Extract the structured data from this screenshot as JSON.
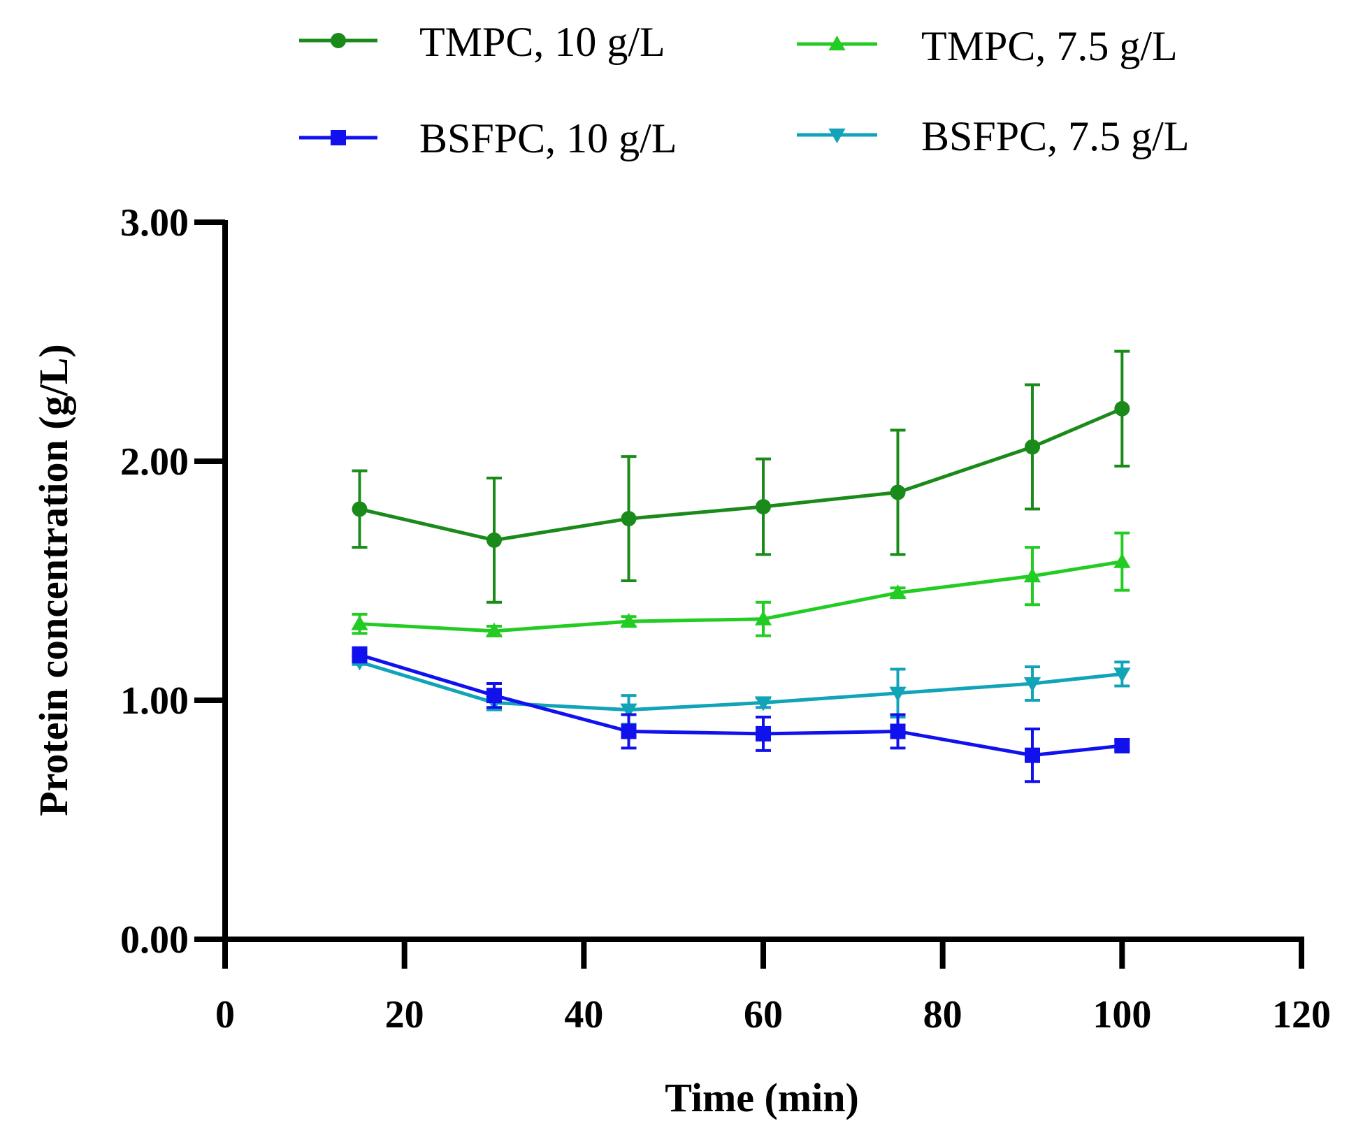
{
  "chart_data": {
    "type": "line",
    "title": "",
    "xlabel": "Time (min)",
    "ylabel": "Protein concentration (g/L)",
    "xlim": [
      0,
      120
    ],
    "ylim": [
      0,
      3
    ],
    "xticks": [
      0,
      20,
      40,
      60,
      80,
      100,
      120
    ],
    "xtick_labels": [
      "0",
      "20",
      "40",
      "60",
      "80",
      "100",
      "120"
    ],
    "yticks": [
      0,
      1,
      2,
      3
    ],
    "ytick_labels": [
      "0.00",
      "1.00",
      "2.00",
      "3.00"
    ],
    "grid": false,
    "legend_position": "top",
    "x": [
      15,
      30,
      45,
      60,
      75,
      90,
      100
    ],
    "series": [
      {
        "name": "TMPC, 10 g/L",
        "color": "#1a8a1a",
        "marker": "circle",
        "values": [
          1.8,
          1.67,
          1.76,
          1.81,
          1.87,
          2.06,
          2.22
        ],
        "errors": [
          0.16,
          0.26,
          0.26,
          0.2,
          0.26,
          0.26,
          0.24
        ]
      },
      {
        "name": "TMPC, 7.5 g/L",
        "color": "#22cc22",
        "marker": "triangle-up",
        "values": [
          1.32,
          1.29,
          1.33,
          1.34,
          1.45,
          1.52,
          1.58
        ],
        "errors": [
          0.04,
          0.02,
          0.02,
          0.07,
          0.02,
          0.12,
          0.12
        ]
      },
      {
        "name": "BSFPC, 10 g/L",
        "color": "#1111ee",
        "marker": "square",
        "values": [
          1.19,
          1.02,
          0.87,
          0.86,
          0.87,
          0.77,
          0.81
        ],
        "errors": [
          0.03,
          0.05,
          0.07,
          0.07,
          0.07,
          0.11,
          0.02
        ]
      },
      {
        "name": "BSFPC, 7.5 g/L",
        "color": "#11a3b8",
        "marker": "triangle-down",
        "values": [
          1.16,
          0.99,
          0.96,
          0.99,
          1.03,
          1.07,
          1.11
        ],
        "errors": [
          0.01,
          0.03,
          0.06,
          0.02,
          0.1,
          0.07,
          0.05
        ]
      }
    ]
  }
}
